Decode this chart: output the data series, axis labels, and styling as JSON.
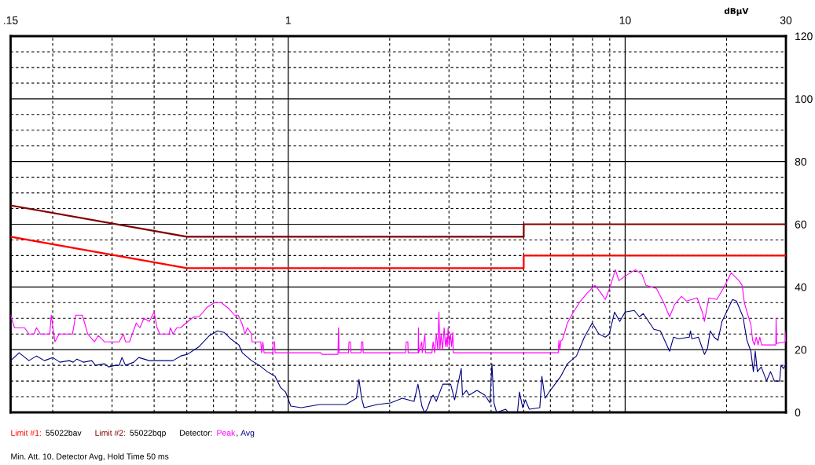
{
  "chart_data": {
    "type": "line",
    "ylabel": "dBµV",
    "legend_title": "Detector:",
    "legend": "bottom left",
    "grid": true,
    "log": "x",
    "annotations": [
      "55022bav",
      "55022bqp",
      ",",
      "Min. Att. 10, Detector Avg, Hold Time 50 ms"
    ],
    "xlim": [
      0.15,
      30
    ],
    "ylim": [
      0,
      120
    ],
    "xticks": [
      {
        "value": 0.15,
        "label": ".15"
      },
      {
        "value": 0.2,
        "label": null
      },
      {
        "value": 0.3,
        "label": null
      },
      {
        "value": 0.4,
        "label": null
      },
      {
        "value": 0.5,
        "label": null
      },
      {
        "value": 0.6,
        "label": null
      },
      {
        "value": 0.7,
        "label": null
      },
      {
        "value": 0.8,
        "label": null
      },
      {
        "value": 0.9,
        "label": null
      },
      1,
      {
        "value": 2,
        "label": null
      },
      {
        "value": 3,
        "label": null
      },
      {
        "value": 4,
        "label": null
      },
      {
        "value": 5,
        "label": null
      },
      {
        "value": 6,
        "label": null
      },
      {
        "value": 7,
        "label": null
      },
      {
        "value": 8,
        "label": null
      },
      {
        "value": 9,
        "label": null
      },
      10,
      {
        "value": 20,
        "label": null
      },
      30
    ],
    "yticks": [
      0,
      {
        "value": 5,
        "label": null
      },
      {
        "value": 10,
        "label": null
      },
      {
        "value": 15,
        "label": null
      },
      20,
      {
        "value": 25,
        "label": null
      },
      {
        "value": 30,
        "label": null
      },
      {
        "value": 35,
        "label": null
      },
      40,
      {
        "value": 45,
        "label": null
      },
      {
        "value": 50,
        "label": null
      },
      {
        "value": 55,
        "label": null
      },
      60,
      {
        "value": 65,
        "label": null
      },
      {
        "value": 70,
        "label": null
      },
      {
        "value": 75,
        "label": null
      },
      80,
      {
        "value": 85,
        "label": null
      },
      {
        "value": 90,
        "label": null
      },
      {
        "value": 95,
        "label": null
      },
      100,
      {
        "value": 105,
        "label": null
      },
      {
        "value": 110,
        "label": null
      },
      {
        "value": 115,
        "label": null
      },
      120
    ],
    "series": [
      {
        "name": "Limit #1:",
        "color": "#ff0000",
        "x": [
          0.15,
          0.5,
          5,
          5,
          30
        ],
        "values": [
          56,
          46,
          46,
          50,
          50
        ]
      },
      {
        "name": "Limit #2:",
        "color": "#800000",
        "x": [
          0.15,
          0.5,
          5,
          5,
          30
        ],
        "values": [
          66,
          56,
          56,
          60,
          60
        ]
      },
      {
        "name": "Peak",
        "color": "#ff00ff",
        "x": [
          0.15,
          0.154,
          0.165,
          0.17,
          0.176,
          0.179,
          0.184,
          0.196,
          0.198,
          0.203,
          0.209,
          0.229,
          0.234,
          0.245,
          0.254,
          0.266,
          0.273,
          0.285,
          0.315,
          0.324,
          0.329,
          0.338,
          0.354,
          0.363,
          0.373,
          0.387,
          0.4,
          0.408,
          0.416,
          0.443,
          0.447,
          0.455,
          0.467,
          0.48,
          0.497,
          0.525,
          0.544,
          0.574,
          0.605,
          0.633,
          0.668,
          0.693,
          0.711,
          0.731,
          0.744,
          0.757,
          0.778,
          0.781,
          0.829,
          0.834,
          0.841,
          0.848,
          0.9,
          0.902,
          0.911,
          0.914,
          1.25,
          1.26,
          1.405,
          1.41,
          1.416,
          1.51,
          1.515,
          1.53,
          1.535,
          1.645,
          1.65,
          1.665,
          1.67,
          2.23,
          2.24,
          2.265,
          2.27,
          2.43,
          2.435,
          2.44,
          2.49,
          2.5,
          2.545,
          2.555,
          2.67,
          2.692,
          2.72,
          2.751,
          2.78,
          2.801,
          2.82,
          2.842,
          2.87,
          2.903,
          2.93,
          2.95,
          2.965,
          2.982,
          3.005,
          3.03,
          3.055,
          3.08,
          3.09,
          6.33,
          6.36,
          6.4,
          6.45,
          6.5,
          6.615,
          6.738,
          6.981,
          7.365,
          7.705,
          8.132,
          8.425,
          8.734,
          9.054,
          9.35,
          9.585,
          10,
          10.73,
          11.22,
          11.53,
          12.38,
          12.95,
          13.55,
          14.04,
          14.69,
          15.22,
          16.35,
          16.94,
          17.19,
          17.72,
          18.7,
          19.56,
          20.64,
          21.77,
          22.25,
          22.58,
          23.07,
          23.61,
          23.9,
          24.2,
          24.5,
          24.8,
          25.1,
          25.4,
          25.82,
          28,
          28.05,
          28.15,
          29.9,
          30
        ],
        "values": [
          31,
          27,
          27,
          25,
          25,
          27,
          25,
          25,
          31,
          22.5,
          25,
          25,
          31,
          31,
          25,
          22.5,
          24.5,
          22.5,
          22.5,
          25,
          22.5,
          22.5,
          28.5,
          27,
          30,
          29,
          32,
          27,
          25,
          25,
          27,
          25,
          27,
          27,
          28.5,
          30.5,
          30.5,
          33.5,
          35,
          35,
          33,
          31,
          31,
          28,
          25,
          27,
          25,
          22.5,
          22.5,
          19,
          22.5,
          19,
          19,
          22.5,
          22.5,
          19,
          19,
          18.5,
          18.5,
          27,
          19,
          19,
          22.5,
          22.5,
          19,
          19,
          22.5,
          22.5,
          19,
          19,
          22.5,
          22.5,
          19,
          19,
          27,
          19,
          22.5,
          19,
          25,
          19,
          19,
          22.5,
          19,
          25,
          20,
          32,
          20,
          25,
          20,
          27,
          21,
          24,
          21,
          27,
          21,
          25,
          21,
          25.5,
          19,
          19,
          23,
          20,
          23,
          23,
          25.5,
          28.5,
          31.5,
          35.5,
          38,
          40.5,
          38.5,
          36,
          40.5,
          45.5,
          42,
          43.5,
          45.5,
          44,
          40.5,
          39.5,
          35.5,
          30.5,
          34.5,
          37,
          35.5,
          36.5,
          32,
          29,
          36.5,
          36,
          39.5,
          44.5,
          42,
          40.5,
          35,
          31.5,
          28,
          23,
          21.5,
          24,
          21.5,
          24,
          21.5,
          21.5,
          21.5,
          30,
          22,
          22.5,
          26
        ]
      },
      {
        "name": "Avg",
        "color": "#000080",
        "x": [
          0.15,
          0.159,
          0.17,
          0.179,
          0.189,
          0.2,
          0.21,
          0.224,
          0.23,
          0.236,
          0.247,
          0.261,
          0.268,
          0.285,
          0.293,
          0.307,
          0.315,
          0.321,
          0.329,
          0.348,
          0.36,
          0.387,
          0.408,
          0.455,
          0.48,
          0.502,
          0.544,
          0.584,
          0.617,
          0.645,
          0.674,
          0.714,
          0.731,
          0.778,
          0.821,
          0.866,
          0.914,
          0.948,
          0.982,
          1.018,
          1.093,
          1.24,
          1.483,
          1.593,
          1.622,
          1.651,
          1.68,
          1.838,
          2.011,
          2.18,
          2.363,
          2.427,
          2.493,
          2.537,
          2.583,
          2.654,
          2.692,
          2.751,
          2.876,
          3.035,
          3.118,
          3.262,
          3.29,
          3.38,
          3.442,
          3.632,
          3.832,
          3.971,
          4.023,
          4.079,
          4.154,
          4.422,
          4.503,
          4.792,
          4.854,
          4.967,
          5.057,
          5.194,
          5.581,
          5.66,
          5.783,
          5.995,
          6.441,
          6.738,
          7.17,
          7.567,
          7.985,
          8.352,
          8.734,
          8.973,
          9.301,
          9.637,
          10,
          10.64,
          11.02,
          11.32,
          12.17,
          12.72,
          13.55,
          13.92,
          14.42,
          15.5,
          15.63,
          15.77,
          16.5,
          17.19,
          17.56,
          17.88,
          18.36,
          18.86,
          19.38,
          20.83,
          21.39,
          22.37,
          22.98,
          23.61,
          24.02,
          24.33,
          24.68,
          25.35,
          26.28,
          27,
          27.73,
          28.74,
          29,
          29.53,
          30
        ],
        "values": [
          16.5,
          19,
          16.5,
          18,
          16.5,
          17.5,
          16,
          16.5,
          16,
          17,
          16,
          16.5,
          15,
          15.5,
          14.5,
          15,
          15,
          17.5,
          15,
          16,
          17.5,
          16.5,
          16.5,
          16.5,
          18,
          18.5,
          21,
          24.5,
          26,
          25.5,
          23.5,
          21.5,
          19,
          16.5,
          15,
          13,
          11.5,
          8,
          6.5,
          2,
          1.5,
          2.5,
          2.5,
          4.5,
          10.5,
          4.5,
          1.5,
          2.5,
          3,
          4.5,
          3.5,
          9,
          2,
          0,
          1,
          4.5,
          5.5,
          3.5,
          9,
          9,
          4,
          14,
          5.5,
          7,
          5.5,
          7,
          5.5,
          3,
          15.5,
          3,
          0,
          1,
          0,
          0,
          6.5,
          1.5,
          4,
          1,
          1.5,
          11.5,
          4.5,
          7,
          11.5,
          15.5,
          18,
          24,
          28.5,
          25,
          24,
          25,
          32,
          29,
          32,
          32.5,
          30.5,
          31.5,
          26.5,
          26,
          19.5,
          24,
          23.5,
          24,
          26,
          23.5,
          24,
          18.5,
          20.5,
          26,
          24,
          23,
          29,
          36,
          35.5,
          30.5,
          23,
          19.5,
          13,
          19.5,
          13,
          14.5,
          10,
          13,
          10,
          10,
          15,
          14,
          15.5
        ]
      }
    ]
  }
}
